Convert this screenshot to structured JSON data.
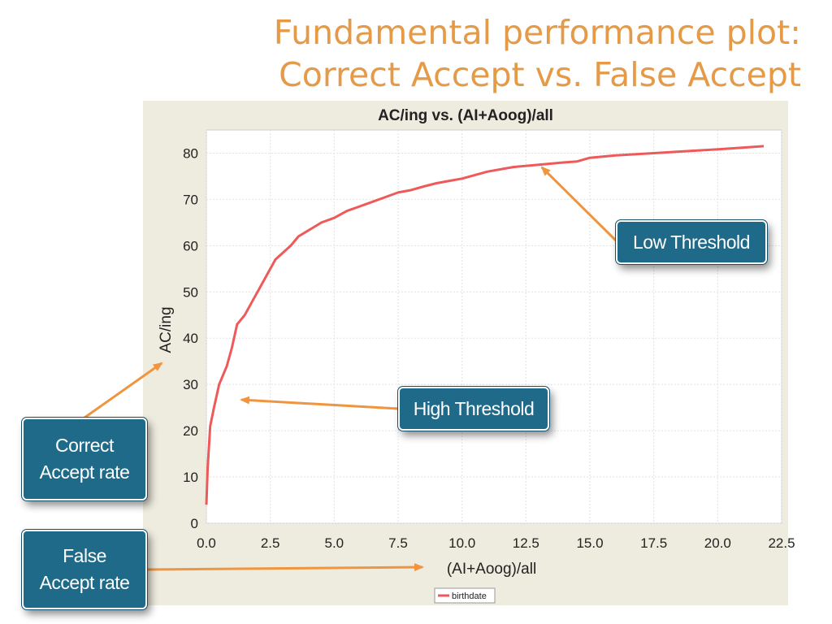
{
  "slide": {
    "title_line1": "Fundamental performance plot:",
    "title_line2": "Correct Accept vs. False Accept"
  },
  "callouts": {
    "low_threshold": "Low Threshold",
    "high_threshold": "High Threshold",
    "correct_accept_line1": "Correct",
    "correct_accept_line2": "Accept rate",
    "false_accept_line1": "False",
    "false_accept_line2": "Accept rate"
  },
  "colors": {
    "title": "#E59A48",
    "series": "#EE5A5A",
    "callout_bg": "#1F6A88",
    "arrow": "#F0953F",
    "panel_bg": "#EEEBDF"
  },
  "chart_data": {
    "type": "line",
    "title": "AC/ing vs. (AI+Aoog)/all",
    "xlabel": "(AI+Aoog)/all",
    "ylabel": "AC/ing",
    "xlim": [
      0,
      22.5
    ],
    "ylim": [
      0,
      85
    ],
    "x_ticks": [
      "0.0",
      "2.5",
      "5.0",
      "7.5",
      "10.0",
      "12.5",
      "15.0",
      "17.5",
      "20.0",
      "22.5"
    ],
    "y_ticks": [
      "0",
      "10",
      "20",
      "30",
      "40",
      "50",
      "60",
      "70",
      "80"
    ],
    "grid": true,
    "legend_position": "bottom-center",
    "series": [
      {
        "name": "birthdate",
        "x": [
          0.0,
          0.05,
          0.15,
          0.3,
          0.5,
          0.8,
          1.0,
          1.2,
          1.5,
          1.8,
          2.1,
          2.4,
          2.7,
          3.0,
          3.3,
          3.6,
          3.9,
          4.2,
          4.5,
          5.0,
          5.5,
          6.0,
          6.5,
          7.0,
          7.5,
          8.0,
          8.5,
          9.0,
          9.5,
          10.0,
          11.0,
          12.0,
          13.0,
          14.0,
          14.5,
          15.0,
          16.0,
          17.5,
          19.0,
          20.5,
          21.8
        ],
        "y": [
          4,
          12,
          21,
          25,
          30,
          34,
          38,
          43,
          45,
          48,
          51,
          54,
          57,
          58.5,
          60,
          62,
          63,
          64,
          65,
          66,
          67.5,
          68.5,
          69.5,
          70.5,
          71.5,
          72,
          72.8,
          73.5,
          74,
          74.5,
          76,
          77,
          77.5,
          78,
          78.2,
          79,
          79.5,
          80,
          80.5,
          81,
          81.5
        ]
      }
    ]
  }
}
